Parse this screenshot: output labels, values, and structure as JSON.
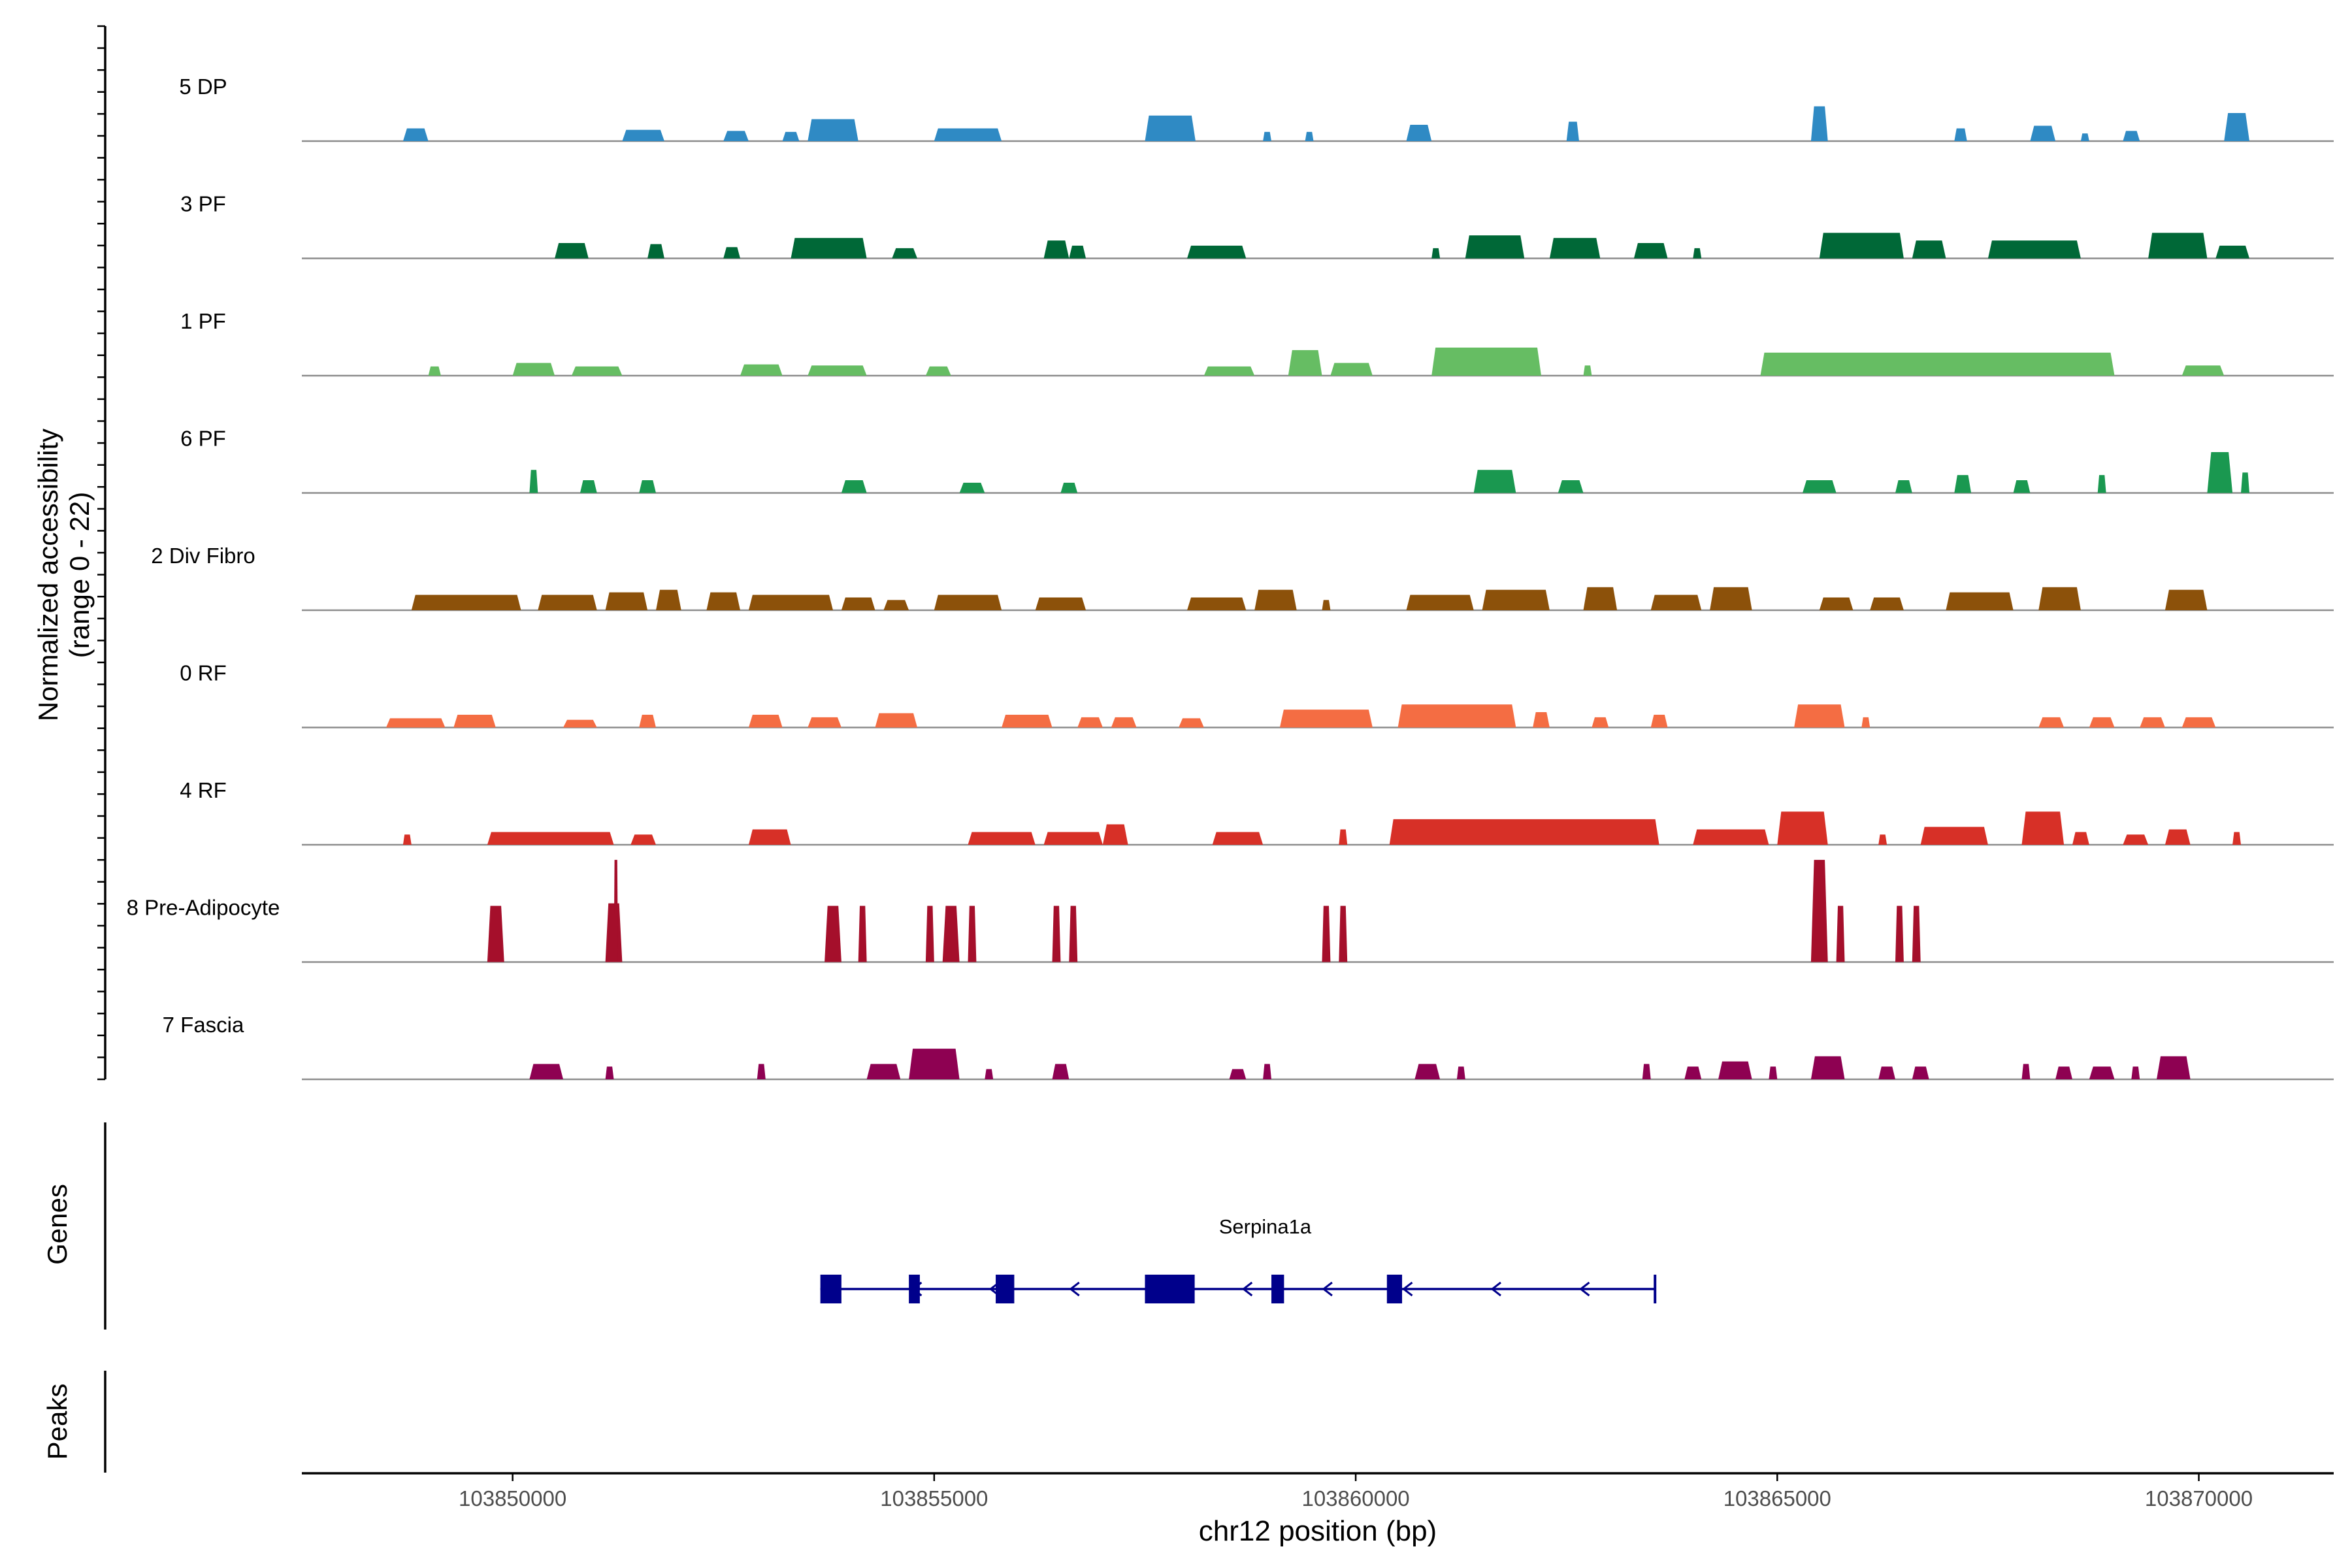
{
  "chart_data": {
    "type": "area",
    "title": "",
    "ylabel_lines": [
      "Normalized accessibility",
      "(range 0 - 22)"
    ],
    "xlabel": "chr12 position (bp)",
    "xlim": [
      103847500,
      103871600
    ],
    "ylim": [
      0,
      22
    ],
    "x_ticks": [
      103850000,
      103855000,
      103860000,
      103865000,
      103870000
    ],
    "x_tick_labels": [
      "103850000",
      "103855000",
      "103860000",
      "103865000",
      "103870000"
    ],
    "track_colors": [
      "#2F8AC4",
      "#006837",
      "#66BD63",
      "#1A9850",
      "#8C510A",
      "#F46D43",
      "#D73027",
      "#A50F2B",
      "#8E0152"
    ],
    "tracks": [
      {
        "name": "5 DP",
        "peaks": [
          [
            103848700,
            103849000,
            2.5
          ],
          [
            103851300,
            103851800,
            2.2
          ],
          [
            103852500,
            103852800,
            2.0
          ],
          [
            103853200,
            103853400,
            1.8
          ],
          [
            103853500,
            103854100,
            4.3
          ],
          [
            103855000,
            103855800,
            2.5
          ],
          [
            103857500,
            103858100,
            5.0
          ],
          [
            103858900,
            103859000,
            1.8
          ],
          [
            103859400,
            103859500,
            1.8
          ],
          [
            103860600,
            103860900,
            3.2
          ],
          [
            103862500,
            103862650,
            3.8
          ],
          [
            103865400,
            103865600,
            6.8
          ],
          [
            103867100,
            103867250,
            2.5
          ],
          [
            103868000,
            103868300,
            3.0
          ],
          [
            103868600,
            103868700,
            1.5
          ],
          [
            103869100,
            103869300,
            2.0
          ],
          [
            103870300,
            103870600,
            5.5
          ]
        ]
      },
      {
        "name": "3 PF",
        "peaks": [
          [
            103850500,
            103850900,
            3.0
          ],
          [
            103851600,
            103851800,
            2.8
          ],
          [
            103852500,
            103852700,
            2.2
          ],
          [
            103853300,
            103854200,
            4.0
          ],
          [
            103854500,
            103854800,
            2.0
          ],
          [
            103856300,
            103856600,
            3.5
          ],
          [
            103856600,
            103856800,
            2.5
          ],
          [
            103858000,
            103858700,
            2.5
          ],
          [
            103860900,
            103861000,
            2.0
          ],
          [
            103861300,
            103862000,
            4.5
          ],
          [
            103862300,
            103862900,
            4.0
          ],
          [
            103863300,
            103863700,
            3.0
          ],
          [
            103864000,
            103864100,
            2.0
          ],
          [
            103865500,
            103866500,
            5.0
          ],
          [
            103866600,
            103867000,
            3.5
          ],
          [
            103867500,
            103868600,
            3.5
          ],
          [
            103869400,
            103870100,
            5.0
          ],
          [
            103870200,
            103870600,
            2.5
          ]
        ]
      },
      {
        "name": "1 PF",
        "peaks": [
          [
            103849000,
            103849150,
            1.8
          ],
          [
            103850000,
            103850500,
            2.5
          ],
          [
            103850700,
            103851300,
            1.8
          ],
          [
            103852700,
            103853200,
            2.2
          ],
          [
            103853500,
            103854200,
            2.0
          ],
          [
            103854900,
            103855200,
            1.8
          ],
          [
            103858200,
            103858800,
            1.8
          ],
          [
            103859200,
            103859600,
            5.0
          ],
          [
            103859700,
            103860200,
            2.5
          ],
          [
            103860900,
            103862200,
            5.5
          ],
          [
            103862700,
            103862800,
            2.0
          ],
          [
            103864800,
            103869000,
            4.5
          ],
          [
            103869800,
            103870300,
            2.0
          ]
        ]
      },
      {
        "name": "6 PF",
        "peaks": [
          [
            103850200,
            103850300,
            4.5
          ],
          [
            103850800,
            103851000,
            2.5
          ],
          [
            103851500,
            103851700,
            2.5
          ],
          [
            103853900,
            103854200,
            2.5
          ],
          [
            103855300,
            103855600,
            2.0
          ],
          [
            103856500,
            103856700,
            2.0
          ],
          [
            103861400,
            103861900,
            4.5
          ],
          [
            103862400,
            103862700,
            2.5
          ],
          [
            103865300,
            103865700,
            2.5
          ],
          [
            103866400,
            103866600,
            2.5
          ],
          [
            103867100,
            103867300,
            3.5
          ],
          [
            103867800,
            103868000,
            2.5
          ],
          [
            103868800,
            103868900,
            3.5
          ],
          [
            103870100,
            103870400,
            8.0
          ],
          [
            103870500,
            103870600,
            4.0
          ]
        ]
      },
      {
        "name": "2 Div Fibro",
        "peaks": [
          [
            103848800,
            103850100,
            3.0
          ],
          [
            103850300,
            103851000,
            3.0
          ],
          [
            103851100,
            103851600,
            3.5
          ],
          [
            103851700,
            103852000,
            4.0
          ],
          [
            103852300,
            103852700,
            3.5
          ],
          [
            103852800,
            103853800,
            3.0
          ],
          [
            103853900,
            103854300,
            2.5
          ],
          [
            103854400,
            103854700,
            2.0
          ],
          [
            103855000,
            103855800,
            3.0
          ],
          [
            103856200,
            103856800,
            2.5
          ],
          [
            103858000,
            103858700,
            2.5
          ],
          [
            103858800,
            103859300,
            4.0
          ],
          [
            103859600,
            103859700,
            2.0
          ],
          [
            103860600,
            103861400,
            3.0
          ],
          [
            103861500,
            103862300,
            4.0
          ],
          [
            103862700,
            103863100,
            4.5
          ],
          [
            103863500,
            103864100,
            3.0
          ],
          [
            103864200,
            103864700,
            4.5
          ],
          [
            103865500,
            103865900,
            2.5
          ],
          [
            103866100,
            103866500,
            2.5
          ],
          [
            103867000,
            103867800,
            3.5
          ],
          [
            103868100,
            103868600,
            4.5
          ],
          [
            103869600,
            103870100,
            4.0
          ]
        ]
      },
      {
        "name": "0 RF",
        "peaks": [
          [
            103848500,
            103849200,
            1.8
          ],
          [
            103849300,
            103849800,
            2.5
          ],
          [
            103850600,
            103851000,
            1.5
          ],
          [
            103851500,
            103851700,
            2.5
          ],
          [
            103852800,
            103853200,
            2.5
          ],
          [
            103853500,
            103853900,
            2.0
          ],
          [
            103854300,
            103854800,
            2.8
          ],
          [
            103855800,
            103856400,
            2.5
          ],
          [
            103856700,
            103857000,
            2.0
          ],
          [
            103857100,
            103857400,
            2.0
          ],
          [
            103857900,
            103858200,
            1.8
          ],
          [
            103859100,
            103860200,
            3.5
          ],
          [
            103860500,
            103861900,
            4.5
          ],
          [
            103862100,
            103862300,
            3.0
          ],
          [
            103862800,
            103863000,
            2.0
          ],
          [
            103863500,
            103863700,
            2.5
          ],
          [
            103865200,
            103865800,
            4.5
          ],
          [
            103866000,
            103866100,
            2.0
          ],
          [
            103868100,
            103868400,
            2.0
          ],
          [
            103868700,
            103869000,
            2.0
          ],
          [
            103869300,
            103869600,
            2.0
          ],
          [
            103869800,
            103870200,
            2.0
          ]
        ]
      },
      {
        "name": "4 RF",
        "peaks": [
          [
            103848700,
            103848800,
            2.0
          ],
          [
            103849700,
            103851200,
            2.5
          ],
          [
            103851400,
            103851700,
            2.0
          ],
          [
            103852800,
            103853300,
            3.0
          ],
          [
            103855400,
            103856200,
            2.5
          ],
          [
            103856300,
            103857000,
            2.5
          ],
          [
            103857000,
            103857300,
            4.0
          ],
          [
            103858300,
            103858900,
            2.5
          ],
          [
            103859800,
            103859900,
            3.0
          ],
          [
            103860400,
            103863600,
            5.0
          ],
          [
            103864000,
            103864900,
            3.0
          ],
          [
            103865000,
            103865600,
            6.5
          ],
          [
            103866200,
            103866300,
            2.0
          ],
          [
            103866700,
            103867500,
            3.5
          ],
          [
            103867900,
            103868400,
            6.5
          ],
          [
            103868500,
            103868700,
            2.5
          ],
          [
            103869100,
            103869400,
            2.0
          ],
          [
            103869600,
            103869900,
            3.0
          ],
          [
            103870400,
            103870500,
            2.5
          ]
        ]
      },
      {
        "name": "8 Pre-Adipocyte",
        "peaks": [
          [
            103849700,
            103849900,
            11.0
          ],
          [
            103851100,
            103851300,
            11.5
          ],
          [
            103851200,
            103851250,
            20.0
          ],
          [
            103853700,
            103853900,
            11.0
          ],
          [
            103854100,
            103854200,
            11.0
          ],
          [
            103854900,
            103855000,
            11.0
          ],
          [
            103855100,
            103855300,
            11.0
          ],
          [
            103855400,
            103855500,
            11.0
          ],
          [
            103856400,
            103856500,
            11.0
          ],
          [
            103856600,
            103856700,
            11.0
          ],
          [
            103859600,
            103859700,
            11.0
          ],
          [
            103859800,
            103859900,
            11.0
          ],
          [
            103865400,
            103865600,
            20.0
          ],
          [
            103865700,
            103865800,
            11.0
          ],
          [
            103866400,
            103866500,
            11.0
          ],
          [
            103866600,
            103866700,
            11.0
          ]
        ]
      },
      {
        "name": "7 Fascia",
        "peaks": [
          [
            103850200,
            103850600,
            3.0
          ],
          [
            103851100,
            103851200,
            2.5
          ],
          [
            103852900,
            103853000,
            3.0
          ],
          [
            103854200,
            103854600,
            3.0
          ],
          [
            103854700,
            103855300,
            6.0
          ],
          [
            103855600,
            103855700,
            2.0
          ],
          [
            103856400,
            103856600,
            3.0
          ],
          [
            103858500,
            103858700,
            2.0
          ],
          [
            103858900,
            103859000,
            3.0
          ],
          [
            103860700,
            103861000,
            3.0
          ],
          [
            103861200,
            103861300,
            2.5
          ],
          [
            103863400,
            103863500,
            3.0
          ],
          [
            103863900,
            103864100,
            2.5
          ],
          [
            103864300,
            103864700,
            3.5
          ],
          [
            103864900,
            103865000,
            2.5
          ],
          [
            103865400,
            103865800,
            4.5
          ],
          [
            103866200,
            103866400,
            2.5
          ],
          [
            103866600,
            103866800,
            2.5
          ],
          [
            103867900,
            103868000,
            3.0
          ],
          [
            103868300,
            103868500,
            2.5
          ],
          [
            103868700,
            103869000,
            2.5
          ],
          [
            103869200,
            103869300,
            2.5
          ],
          [
            103869500,
            103869900,
            4.5
          ]
        ]
      }
    ],
    "gene": {
      "name": "Serpina1a",
      "strand": "-",
      "start": 103853650,
      "end": 103863550,
      "exons": [
        [
          103853650,
          103853900
        ],
        [
          103854700,
          103854830
        ],
        [
          103855730,
          103855950
        ],
        [
          103857500,
          103858090
        ],
        [
          103859000,
          103859150
        ],
        [
          103860370,
          103860550
        ]
      ],
      "direction_arrows": [
        103854780,
        103855700,
        103856650,
        103858700,
        103859650,
        103860600,
        103861650,
        103862700
      ]
    },
    "panel_labels": {
      "genes": "Genes",
      "peaks": "Peaks"
    }
  }
}
